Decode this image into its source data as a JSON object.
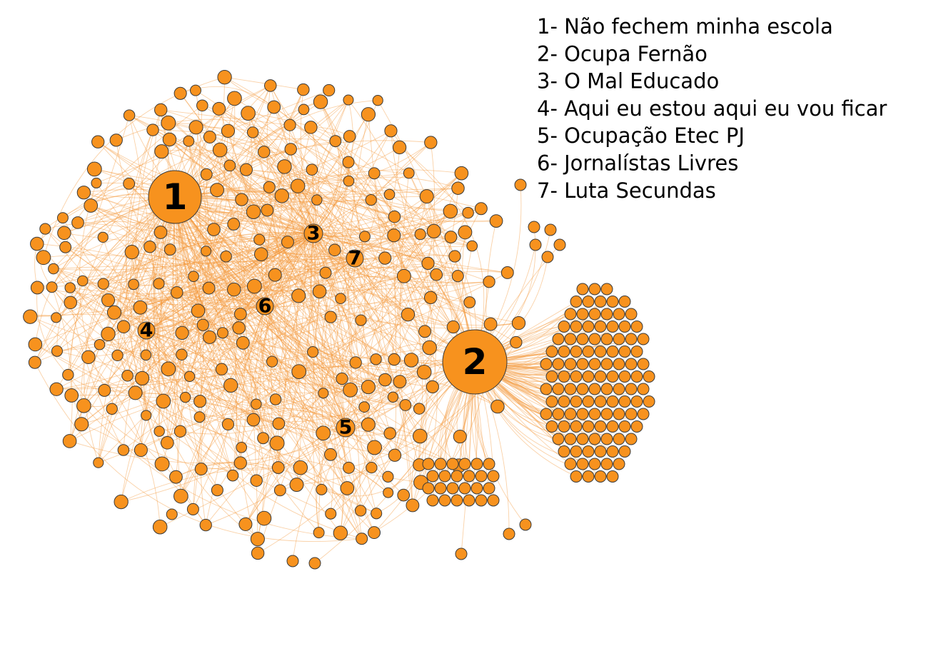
{
  "nodes": [
    {
      "label": "1"
    },
    {
      "label": "2"
    },
    {
      "label": "3"
    },
    {
      "label": "4"
    },
    {
      "label": "5"
    },
    {
      "label": "6"
    },
    {
      "label": "7"
    }
  ],
  "legend": [
    "1- Não fechem minha escola",
    "2- Ocupa Fernão",
    "3- O Mal Educado",
    "4- Aqui eu estou aqui eu vou ficar",
    "5- Ocupação Etec PJ",
    "6- Jornalístas Livres",
    "7- Luta Secundas"
  ]
}
